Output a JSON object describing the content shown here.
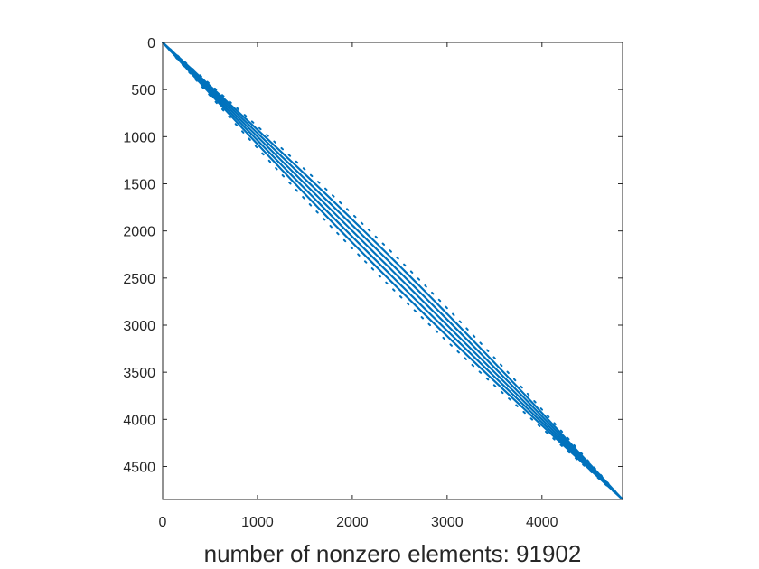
{
  "chart_data": {
    "type": "scatter",
    "title": "",
    "xlabel": "number of nonzero elements: 91902",
    "ylabel": "",
    "xlim": [
      0,
      4850
    ],
    "ylim": [
      0,
      4850
    ],
    "y_reversed": true,
    "x_ticks": [
      0,
      1000,
      2000,
      3000,
      4000
    ],
    "y_ticks": [
      0,
      500,
      1000,
      1500,
      2000,
      2500,
      3000,
      3500,
      4000,
      4500
    ],
    "grid": false,
    "legend": "none",
    "color": "#0072BD",
    "matrix_size": 4850,
    "nonzero_count": 91902,
    "bands": [
      {
        "name": "main diagonal",
        "offset": 0,
        "style": "solid"
      },
      {
        "name": "superdiagonal 1",
        "offset": 1,
        "style": "solid"
      },
      {
        "name": "subdiagonal 1",
        "offset": -1,
        "style": "solid"
      },
      {
        "name": "superdiagonal 2",
        "offset": 2,
        "style": "solid"
      },
      {
        "name": "subdiagonal 2",
        "offset": -2,
        "style": "solid"
      },
      {
        "name": "superdiagonal 3",
        "offset": 3,
        "style": "dotted"
      },
      {
        "name": "subdiagonal 3",
        "offset": -3,
        "style": "dotted"
      }
    ],
    "band_max_width": 95,
    "points": [
      [
        0,
        0
      ],
      [
        500,
        500
      ],
      [
        1000,
        1000
      ],
      [
        1500,
        1500
      ],
      [
        2000,
        2000
      ],
      [
        2500,
        2500
      ],
      [
        3000,
        3000
      ],
      [
        3500,
        3500
      ],
      [
        4000,
        4000
      ],
      [
        4500,
        4500
      ],
      [
        4850,
        4850
      ]
    ]
  }
}
